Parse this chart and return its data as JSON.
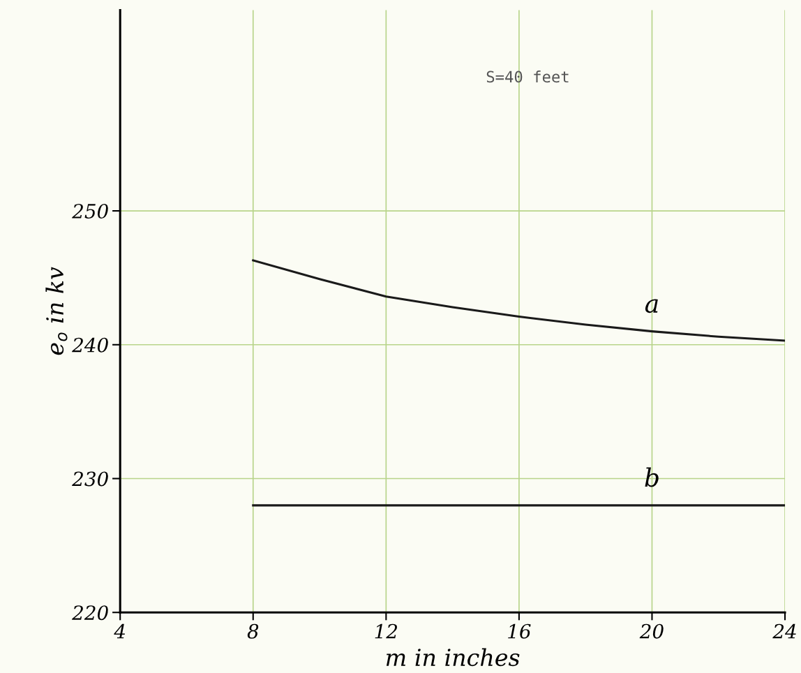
{
  "chart_data": {
    "type": "line",
    "xlabel": "m in inches",
    "ylabel": "e$_{o}$ in kv",
    "annotations": [
      "S=40 feet"
    ],
    "series": [
      {
        "name": "a",
        "color": "#1a1a1a",
        "x": [
          8,
          10,
          12,
          14,
          16,
          18,
          20,
          22,
          24
        ],
        "values": [
          246.3,
          244.9,
          243.6,
          242.8,
          242.1,
          241.5,
          241.0,
          240.6,
          240.3
        ]
      },
      {
        "name": "b",
        "color": "#1a1a1a",
        "x": [
          8,
          12,
          16,
          20,
          24
        ],
        "values": [
          228.0,
          228.0,
          228.0,
          228.0,
          228.0
        ]
      }
    ],
    "xlim": [
      4,
      24
    ],
    "xticks": [
      4,
      8,
      12,
      16,
      20,
      24
    ],
    "ylim": [
      220,
      265
    ],
    "yticks": [
      220,
      230,
      240,
      250
    ],
    "grid": true,
    "legend": false,
    "marker": "none",
    "line_style": "solid"
  }
}
